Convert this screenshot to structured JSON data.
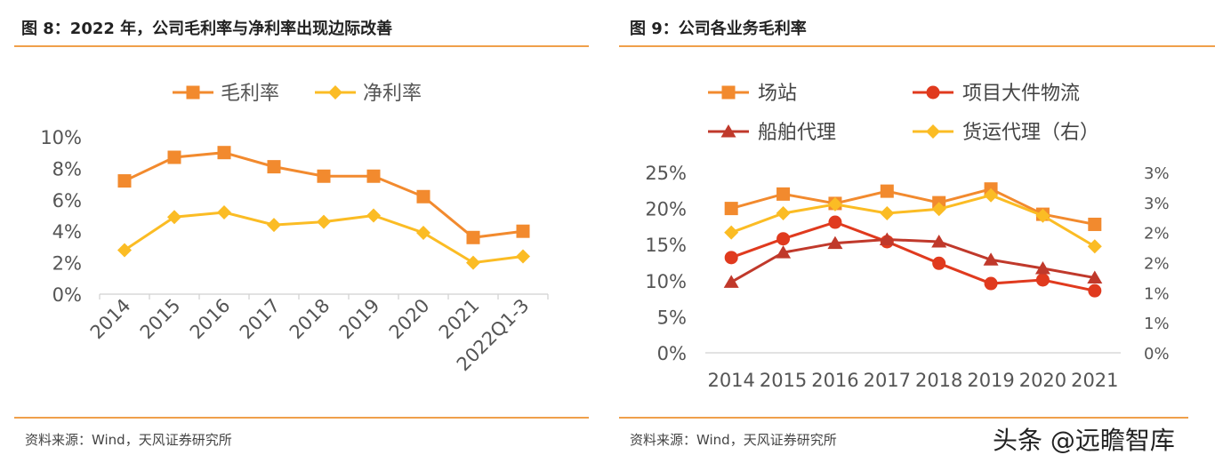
{
  "charts": {
    "left": {
      "title": "图 8：2022 年，公司毛利率与净利率出现边际改善",
      "source": "资料来源：Wind，天风证券研究所"
    },
    "right": {
      "title": "图 9：公司各业务毛利率",
      "source": "资料来源：Wind，天风证券研究所"
    }
  },
  "watermark": "头条 @远瞻智库",
  "chart_data": [
    {
      "type": "line",
      "title": "",
      "categories": [
        "2014",
        "2015",
        "2016",
        "2017",
        "2018",
        "2019",
        "2020",
        "2021",
        "2022Q1-3"
      ],
      "y_ticks": [
        "0%",
        "2%",
        "4%",
        "6%",
        "8%",
        "10%"
      ],
      "ylim": [
        0,
        10
      ],
      "grid": false,
      "legend_position": "top",
      "series": [
        {
          "name": "毛利率",
          "color": "#f28a2e",
          "marker": "square",
          "values": [
            7.2,
            8.7,
            9.0,
            8.1,
            7.5,
            7.5,
            6.2,
            3.6,
            4.0
          ]
        },
        {
          "name": "净利率",
          "color": "#fbbc24",
          "marker": "diamond",
          "values": [
            2.8,
            4.9,
            5.2,
            4.4,
            4.6,
            5.0,
            3.9,
            2.0,
            2.4
          ]
        }
      ]
    },
    {
      "type": "line",
      "title": "",
      "categories": [
        "2014",
        "2015",
        "2016",
        "2017",
        "2018",
        "2019",
        "2020",
        "2021"
      ],
      "y_ticks": [
        "0%",
        "5%",
        "10%",
        "15%",
        "20%",
        "25%"
      ],
      "y2_ticks": [
        "0%",
        "1%",
        "1%",
        "2%",
        "2%",
        "3%",
        "3%"
      ],
      "ylim": [
        0,
        25
      ],
      "y2lim": [
        0,
        3
      ],
      "grid": false,
      "legend_position": "top",
      "series": [
        {
          "name": "场站",
          "color": "#f28a2e",
          "marker": "square",
          "axis": "left",
          "values": [
            20.0,
            22.0,
            20.7,
            22.4,
            20.8,
            22.7,
            19.2,
            17.8
          ]
        },
        {
          "name": "项目大件物流",
          "color": "#e03a1e",
          "marker": "circle",
          "axis": "left",
          "values": [
            13.2,
            15.8,
            18.1,
            15.4,
            12.4,
            9.6,
            10.1,
            8.6
          ]
        },
        {
          "name": "船舶代理",
          "color": "#c0392b",
          "marker": "triangle",
          "axis": "left",
          "values": [
            9.8,
            13.9,
            15.2,
            15.7,
            15.4,
            12.9,
            11.7,
            10.4
          ]
        },
        {
          "name": "货运代理（右）",
          "color": "#fbbc24",
          "marker": "diamond",
          "axis": "right",
          "values": [
            2.0,
            2.32,
            2.47,
            2.32,
            2.39,
            2.62,
            2.28,
            1.77
          ]
        }
      ]
    }
  ]
}
